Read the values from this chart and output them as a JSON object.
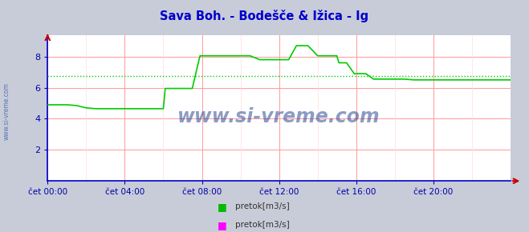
{
  "title": "Sava Boh. - Bodešče & Ižica - Ig",
  "title_color": "#0000cc",
  "bg_color": "#c8ccd8",
  "plot_bg_color": "#ffffff",
  "ylim": [
    0,
    9.4
  ],
  "yticks": [
    2,
    4,
    6,
    8
  ],
  "tick_color": "#0000aa",
  "grid_color_major": "#ff9999",
  "grid_color_minor": "#ffdddd",
  "axis_color": "#0000cc",
  "line1_color": "#00cc00",
  "avg_line_color": "#00cc00",
  "avg_value": 6.75,
  "watermark_text": "www.si-vreme.com",
  "watermark_color": "#1a3a8a",
  "legend1_label": "pretok[m3/s]",
  "legend1_color": "#00bb00",
  "legend2_label": "pretok[m3/s]",
  "legend2_color": "#ff00ff",
  "xtick_labels": [
    "čet 00:00",
    "čet 04:00",
    "čet 08:00",
    "čet 12:00",
    "čet 16:00",
    "čet 20:00"
  ],
  "xtick_positions": [
    0,
    4,
    8,
    12,
    16,
    20
  ],
  "sidebar_text": "www.si-vreme.com",
  "time_hours": [
    0,
    0.08,
    0.5,
    1.0,
    1.5,
    2.0,
    2.5,
    3.0,
    3.5,
    3.9,
    4.0,
    4.5,
    5.0,
    5.5,
    6.0,
    6.1,
    6.5,
    7.0,
    7.5,
    7.9,
    8.0,
    8.5,
    9.0,
    9.5,
    10.0,
    10.5,
    11.0,
    11.5,
    12.0,
    12.5,
    12.9,
    13.0,
    13.5,
    14.0,
    14.5,
    15.0,
    15.1,
    15.5,
    15.9,
    16.0,
    16.5,
    16.9,
    17.0,
    17.5,
    18.0,
    18.5,
    19.0,
    19.5,
    20.0,
    20.5,
    21.0,
    21.5,
    22.0,
    22.5,
    23.0,
    23.5,
    24.0
  ],
  "values1": [
    4.9,
    4.9,
    4.9,
    4.9,
    4.85,
    4.7,
    4.65,
    4.65,
    4.65,
    4.65,
    4.65,
    4.65,
    4.65,
    4.65,
    4.65,
    5.95,
    5.95,
    5.95,
    5.95,
    8.05,
    8.05,
    8.05,
    8.05,
    8.05,
    8.05,
    8.05,
    7.8,
    7.8,
    7.8,
    7.8,
    8.7,
    8.7,
    8.7,
    8.05,
    8.05,
    8.05,
    7.6,
    7.6,
    6.9,
    6.9,
    6.9,
    6.55,
    6.55,
    6.55,
    6.55,
    6.55,
    6.5,
    6.5,
    6.5,
    6.5,
    6.5,
    6.5,
    6.5,
    6.5,
    6.5,
    6.5,
    6.5
  ]
}
